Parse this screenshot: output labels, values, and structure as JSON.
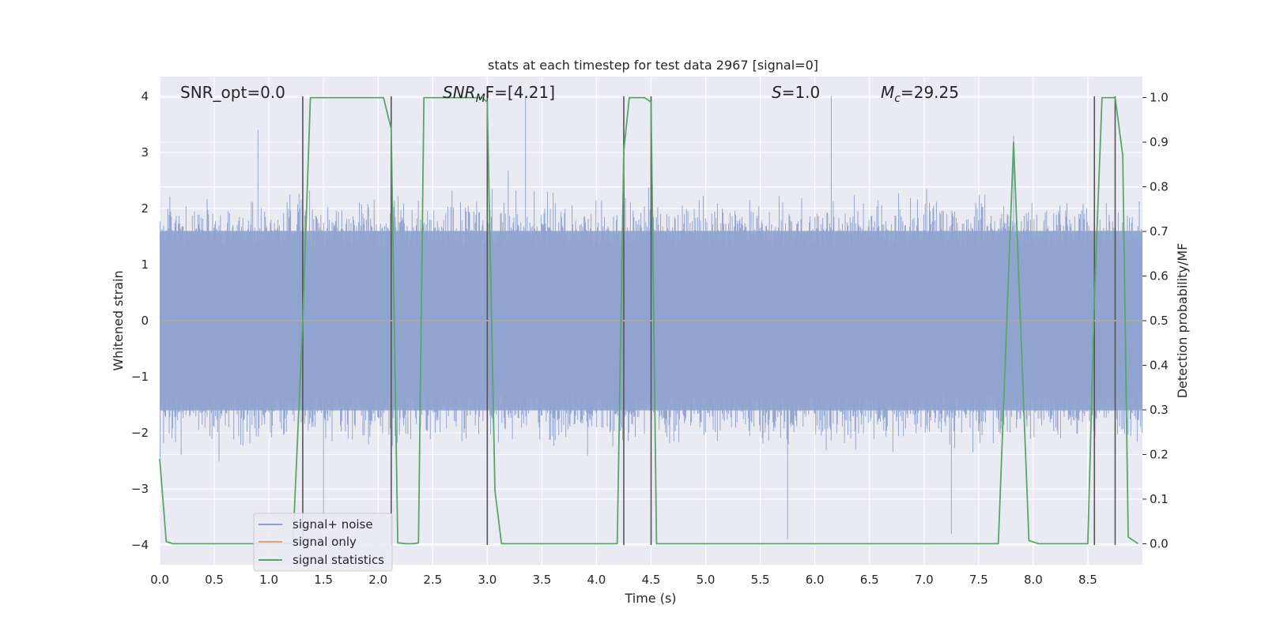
{
  "chart_data": {
    "type": "line",
    "title": "stats at each timestep for test data 2967 [signal=0]",
    "xlabel": "Time (s)",
    "ylabel": "Whitened strain",
    "y2label": "Detection probability/MF",
    "xlim": [
      0.0,
      9.0
    ],
    "ylim": [
      -4.35,
      4.35
    ],
    "y2lim": [
      -0.047,
      1.047
    ],
    "x_ticks": [
      "0.0",
      "0.5",
      "1.0",
      "1.5",
      "2.0",
      "2.5",
      "3.0",
      "3.5",
      "4.0",
      "4.5",
      "5.0",
      "5.5",
      "6.0",
      "6.5",
      "7.0",
      "7.5",
      "8.0",
      "8.5"
    ],
    "y_ticks": [
      "4",
      "3",
      "2",
      "1",
      "0",
      "−1",
      "−2",
      "−3",
      "−4"
    ],
    "y_tick_values": [
      4,
      3,
      2,
      1,
      0,
      -1,
      -2,
      -3,
      -4
    ],
    "y2_ticks": [
      "1.0",
      "0.9",
      "0.8",
      "0.7",
      "0.6",
      "0.5",
      "0.4",
      "0.3",
      "0.2",
      "0.1",
      "0.0"
    ],
    "y2_tick_values": [
      1.0,
      0.9,
      0.8,
      0.7,
      0.6,
      0.5,
      0.4,
      0.3,
      0.2,
      0.1,
      0.0
    ],
    "grid": true,
    "legend_position": "lower-left",
    "annotations": {
      "snr_opt": "SNR_opt=0.0",
      "snr_mf_main": "SNR",
      "snr_mf_sub": "M",
      "snr_mf_rest": "F=[4.21]",
      "s_main": "S",
      "s_rest": "=1.0",
      "mc_main": "M",
      "mc_sub": "c",
      "mc_rest": "=29.25"
    },
    "noise_envelope": {
      "description_series": "signal+ noise",
      "typical_band": [
        -1.6,
        1.6
      ],
      "peak_positive_x": [
        0.9,
        3.35,
        6.15,
        7.82
      ],
      "peak_positive_y": [
        3.4,
        4.0,
        4.0,
        3.3
      ],
      "peak_negative_x": [
        1.5,
        5.75,
        7.25
      ],
      "peak_negative_y": [
        -3.6,
        -3.9,
        -3.8
      ]
    },
    "vertical_lines_x": [
      1.31,
      2.12,
      3.0,
      4.25,
      4.5,
      8.56,
      8.75
    ],
    "series": [
      {
        "name": "signal+ noise",
        "color": "#8fa3cf"
      },
      {
        "name": "signal only",
        "color": "#e1a07a",
        "values_y": [
          0.0,
          0.0
        ],
        "x": [
          0.0,
          9.0
        ]
      },
      {
        "name": "signal statistics",
        "color": "#55a868",
        "x": [
          0.0,
          0.06,
          0.12,
          0.2,
          1.22,
          1.31,
          1.38,
          1.45,
          2.05,
          2.12,
          2.18,
          2.26,
          2.32,
          2.37,
          2.42,
          2.95,
          3.0,
          3.07,
          3.13,
          3.2,
          4.19,
          4.25,
          4.3,
          4.44,
          4.5,
          4.55,
          4.6,
          7.68,
          7.82,
          7.96,
          8.05,
          8.5,
          8.56,
          8.63,
          8.73,
          8.75,
          8.82,
          8.87,
          8.96
        ],
        "values": [
          0.19,
          0.005,
          0.0,
          0.0,
          0.0,
          0.5,
          1.0,
          1.0,
          1.0,
          0.93,
          0.002,
          0.0,
          0.0,
          0.002,
          1.0,
          1.0,
          0.99,
          0.12,
          0.0,
          0.0,
          0.0,
          0.88,
          1.0,
          1.0,
          0.99,
          0.0,
          0.0,
          0.0,
          0.9,
          0.007,
          0.0,
          0.0,
          0.55,
          1.0,
          1.0,
          1.0,
          0.87,
          0.015,
          0.0
        ]
      }
    ]
  }
}
